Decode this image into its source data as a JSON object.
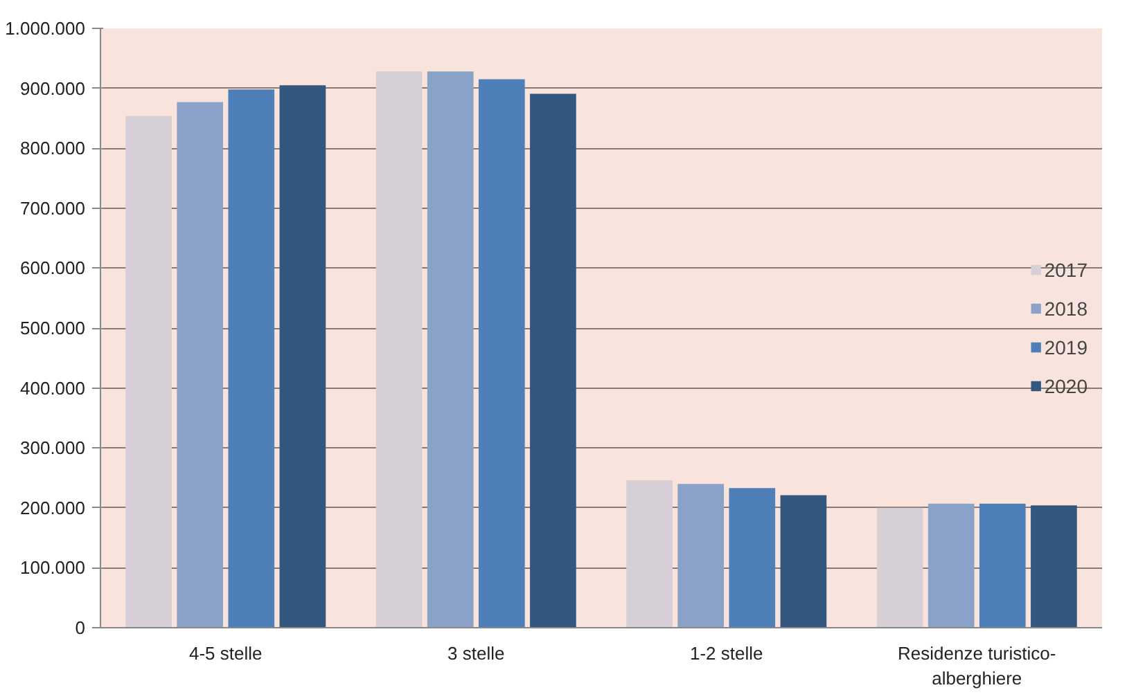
{
  "chart_data": {
    "type": "bar",
    "categories": [
      "4-5 stelle",
      "3 stelle",
      "1-2 stelle",
      "Residenze turistico-\nalberghiere"
    ],
    "series": [
      {
        "name": "2017",
        "color": "#d6cfd6",
        "values": [
          854000,
          928000,
          246000,
          200000
        ]
      },
      {
        "name": "2018",
        "color": "#8ba2c8",
        "values": [
          877000,
          928000,
          240000,
          207000
        ]
      },
      {
        "name": "2019",
        "color": "#4f7fb8",
        "values": [
          898000,
          915000,
          233000,
          207000
        ]
      },
      {
        "name": "2020",
        "color": "#34577f",
        "values": [
          905000,
          891000,
          221000,
          204000
        ]
      }
    ],
    "ylim": [
      0,
      1000000
    ],
    "yticks": [
      {
        "value": 0,
        "label": "0"
      },
      {
        "value": 100000,
        "label": "100.000"
      },
      {
        "value": 200000,
        "label": "200.000"
      },
      {
        "value": 300000,
        "label": "300.000"
      },
      {
        "value": 400000,
        "label": "400.000"
      },
      {
        "value": 500000,
        "label": "500.000"
      },
      {
        "value": 600000,
        "label": "600.000"
      },
      {
        "value": 700000,
        "label": "700.000"
      },
      {
        "value": 800000,
        "label": "800.000"
      },
      {
        "value": 900000,
        "label": "900.000"
      },
      {
        "value": 1000000,
        "label": "1.000.000"
      }
    ],
    "grid": "y",
    "legend": "right"
  }
}
